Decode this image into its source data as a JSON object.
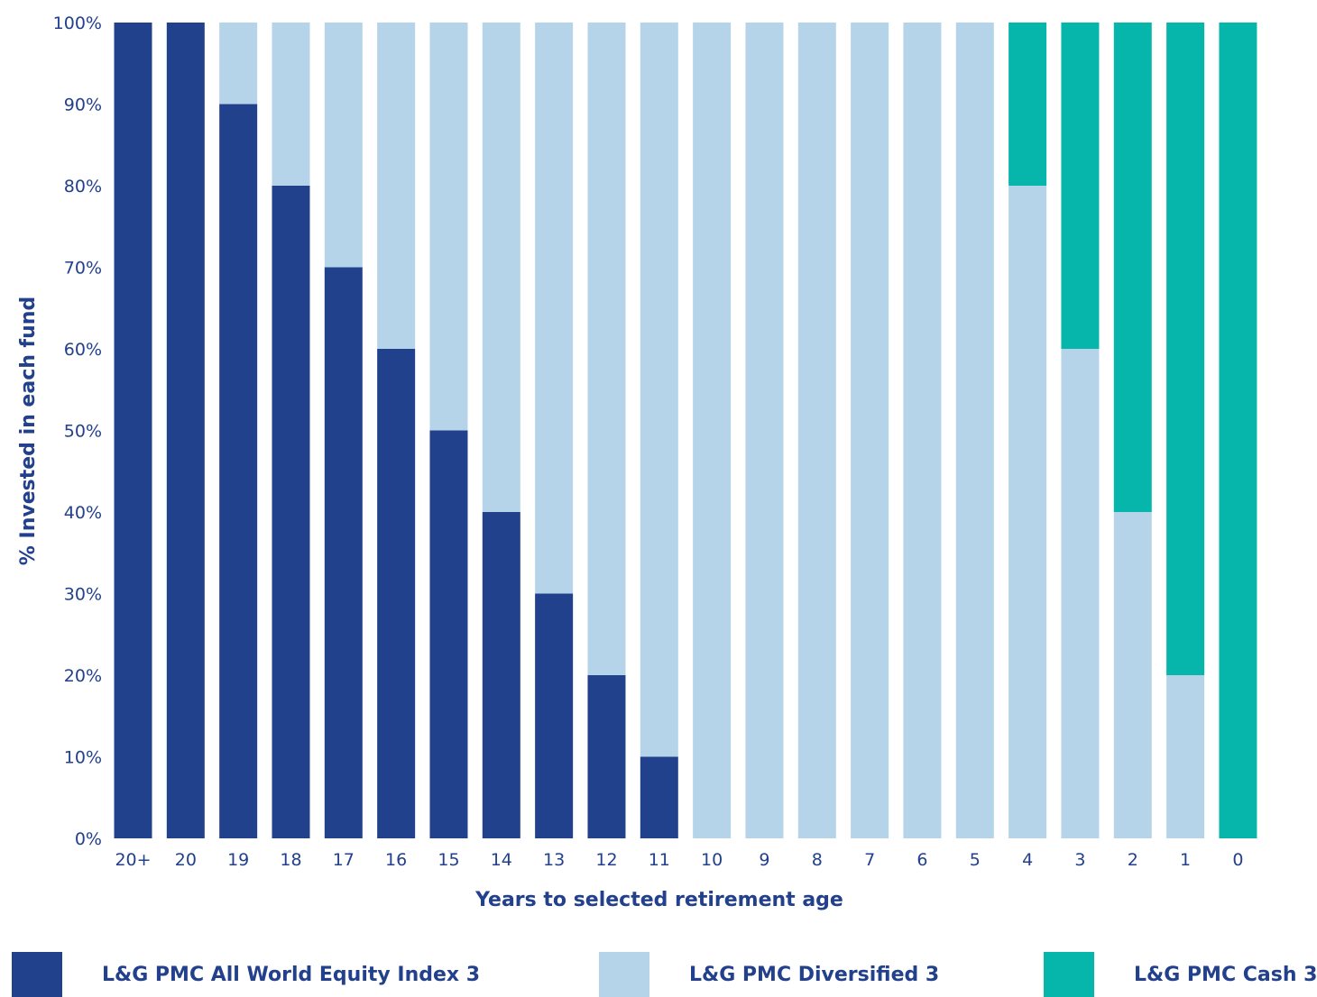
{
  "chart_data": {
    "type": "bar",
    "stacked": true,
    "categories": [
      "20+",
      "20",
      "19",
      "18",
      "17",
      "16",
      "15",
      "14",
      "13",
      "12",
      "11",
      "10",
      "9",
      "8",
      "7",
      "6",
      "5",
      "4",
      "3",
      "2",
      "1",
      "0"
    ],
    "series": [
      {
        "name": "L&G PMC All World Equity Index 3",
        "color": "#22418c",
        "values": [
          100,
          100,
          90,
          80,
          70,
          60,
          50,
          40,
          30,
          20,
          10,
          0,
          0,
          0,
          0,
          0,
          0,
          0,
          0,
          0,
          0,
          0
        ]
      },
      {
        "name": "L&G PMC Diversified 3",
        "color": "#b5d4e9",
        "values": [
          0,
          0,
          10,
          20,
          30,
          40,
          50,
          60,
          70,
          80,
          90,
          100,
          100,
          100,
          100,
          100,
          100,
          80,
          60,
          40,
          20,
          0
        ]
      },
      {
        "name": "L&G PMC Cash 3",
        "color": "#06b6ab",
        "values": [
          0,
          0,
          0,
          0,
          0,
          0,
          0,
          0,
          0,
          0,
          0,
          0,
          0,
          0,
          0,
          0,
          0,
          20,
          40,
          60,
          80,
          100
        ]
      }
    ],
    "xlabel": "Years to selected retirement age",
    "ylabel": "% Invested in each fund",
    "ylim": [
      0,
      100
    ],
    "yticks": [
      "0%",
      "10%",
      "20%",
      "30%",
      "40%",
      "50%",
      "60%",
      "70%",
      "80%",
      "90%",
      "100%"
    ],
    "grid": false,
    "legend_position": "bottom"
  }
}
